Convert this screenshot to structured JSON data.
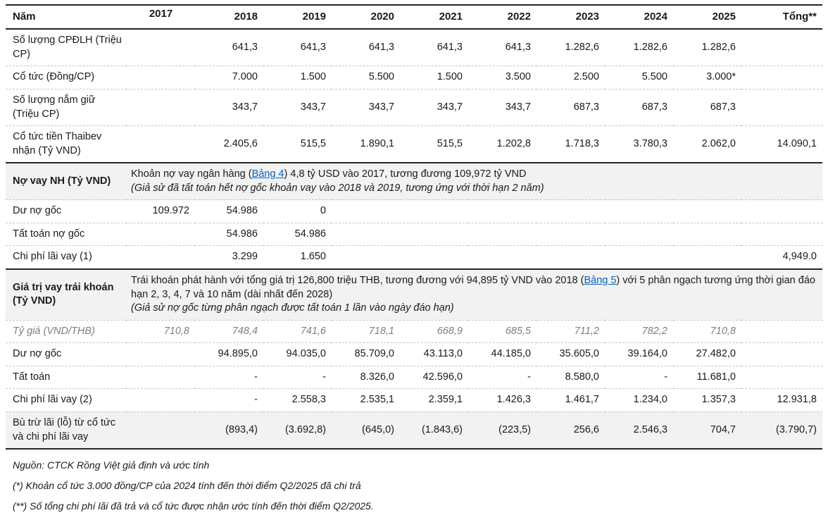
{
  "table": {
    "columns": [
      "Năm",
      "2017",
      "2018",
      "2019",
      "2020",
      "2021",
      "2022",
      "2023",
      "2024",
      "2025",
      "Tổng**"
    ],
    "rows": [
      {
        "type": "data",
        "label": "Số lượng CPĐLH (Triệu CP)",
        "values": [
          "",
          "641,3",
          "641,3",
          "641,3",
          "641,3",
          "641,3",
          "1.282,6",
          "1.282,6",
          "1.282,6",
          ""
        ]
      },
      {
        "type": "data",
        "label": "Cổ tức (Đồng/CP)",
        "values": [
          "",
          "7.000",
          "1.500",
          "5.500",
          "1.500",
          "3.500",
          "2.500",
          "5.500",
          "3.000*",
          ""
        ]
      },
      {
        "type": "data",
        "label": "Số lượng nắm giữ (Triệu CP)",
        "values": [
          "",
          "343,7",
          "343,7",
          "343,7",
          "343,7",
          "343,7",
          "687,3",
          "687,3",
          "687,3",
          ""
        ]
      },
      {
        "type": "data",
        "label": "Cổ tức tiền Thaibev nhận (Tỷ VND)",
        "values": [
          "",
          "2.405,6",
          "515,5",
          "1.890,1",
          "515,5",
          "1.202,8",
          "1.718,3",
          "3.780,3",
          "2.062,0",
          "14.090,1"
        ]
      },
      {
        "type": "section",
        "label": "Nợ vay NH (Tỷ VND)",
        "desc_pre": "Khoản nợ vay ngân hàng (",
        "desc_link": "Bảng 4",
        "desc_post": ") 4,8 tỷ USD vào 2017, tương đương 109,972 tỷ VND",
        "desc_note": "(Giả sử đã tất toán hết nợ gốc khoản vay vào 2018 và 2019, tương ứng với thời hạn 2 năm)"
      },
      {
        "type": "data",
        "label": "Dư nợ gốc",
        "values": [
          "109.972",
          "54.986",
          "0",
          "",
          "",
          "",
          "",
          "",
          "",
          ""
        ]
      },
      {
        "type": "data",
        "label": "Tất toán nợ gốc",
        "values": [
          "",
          "54.986",
          "54.986",
          "",
          "",
          "",
          "",
          "",
          "",
          ""
        ]
      },
      {
        "type": "data",
        "label": "Chi phí lãi vay (1)",
        "values": [
          "",
          "3.299",
          "1.650",
          "",
          "",
          "",
          "",
          "",
          "",
          "4,949.0"
        ]
      },
      {
        "type": "section",
        "label": "Giá trị vay trái khoán (Tỷ VND)",
        "desc_pre": "Trái khoán phát hành với tổng giá trị 126,800 triệu THB, tương đương với 94,895 tỷ VND vào 2018 (",
        "desc_link": "Bảng 5",
        "desc_post": ") với 5 phân ngạch tương ứng thời gian đáo hạn 2, 3, 4, 7 và 10 năm (dài nhất đến 2028)",
        "desc_note": "(Giả sử nợ gốc từng phân ngạch được tất toán 1 lần vào ngày đáo hạn)"
      },
      {
        "type": "data",
        "muted": true,
        "label": "Tỷ giá (VND/THB)",
        "values": [
          "710,8",
          "748,4",
          "741,6",
          "718,1",
          "668,9",
          "685,5",
          "711,2",
          "782,2",
          "710,8",
          ""
        ]
      },
      {
        "type": "data",
        "label": "Dư nợ gốc",
        "values": [
          "",
          "94.895,0",
          "94.035,0",
          "85.709,0",
          "43.113,0",
          "44.185,0",
          "35.605,0",
          "39.164,0",
          "27.482,0",
          ""
        ]
      },
      {
        "type": "data",
        "label": "Tất toán",
        "values": [
          "",
          "-",
          "-",
          "8.326,0",
          "42.596,0",
          "-",
          "8.580,0",
          "-",
          "11.681,0",
          ""
        ]
      },
      {
        "type": "data",
        "label": "Chi phí lãi vay (2)",
        "values": [
          "",
          "-",
          "2.558,3",
          "2.535,1",
          "2.359,1",
          "1.426,3",
          "1.461,7",
          "1.234,0",
          "1.357,3",
          "12.931,8"
        ]
      },
      {
        "type": "data",
        "highlight": true,
        "label": "Bù trừ lãi (lỗ) từ cổ tức và chi phí lãi vay",
        "values": [
          "",
          "(893,4)",
          "(3.692,8)",
          "(645,0)",
          "(1.843,6)",
          "(223,5)",
          "256,6",
          "2.546,3",
          "704,7",
          "(3.790,7)"
        ]
      }
    ]
  },
  "footer": {
    "source": "Nguồn: CTCK Rồng Việt giả định và ước tính",
    "note1": "(*) Khoản cổ tức 3.000 đồng/CP của 2024 tính đến thời điểm Q2/2025 đã chi trả",
    "note2": "(**) Số tổng chi phí lãi đã trả và cổ tức được nhận ước tính đến thời điểm Q2/2025."
  },
  "colors": {
    "link": "#0563c1",
    "section_bg": "#f2f2f2",
    "muted_text": "#7f7f7f",
    "border": "#262626"
  }
}
